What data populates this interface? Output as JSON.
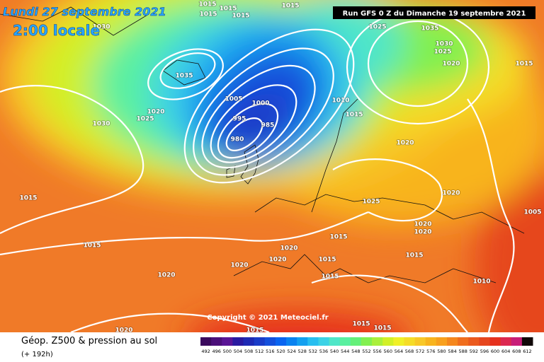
{
  "header": {
    "date": "Lundi 27 septembre 2021",
    "time": "2:00 locale",
    "run": "Run GFS 0 Z du Dimanche 19 septembre 2021"
  },
  "copyright": "Copyright © 2021 Meteociel.fr",
  "footer": {
    "title": "Géop. Z500 & pression au sol",
    "subtitle": "(+ 192h)"
  },
  "isobar_labels": [
    "1015",
    "1015",
    "1015",
    "1015",
    "1015",
    "1025",
    "1035",
    "1030",
    "1025",
    "1020",
    "1015",
    "1030",
    "1035",
    "1020",
    "1025",
    "1030",
    "1005",
    "1000",
    "995",
    "985",
    "980",
    "1010",
    "1015",
    "1020",
    "1015",
    "1020",
    "1025",
    "1020",
    "1020",
    "1005",
    "1015",
    "1015",
    "1020",
    "1020",
    "1020",
    "1015",
    "1015",
    "1015",
    "1020",
    "1010",
    "1015",
    "1015",
    "1015",
    "1020"
  ],
  "scale": {
    "labels": [
      492,
      496,
      500,
      504,
      508,
      512,
      516,
      520,
      524,
      528,
      532,
      536,
      540,
      544,
      548,
      552,
      556,
      560,
      564,
      568,
      572,
      576,
      580,
      584,
      588,
      592,
      596,
      600,
      604,
      608,
      612
    ],
    "colors": [
      "#3b0a5e",
      "#4b0f7a",
      "#5a1596",
      "#2a1aa0",
      "#1e2ab4",
      "#1a3cc8",
      "#1450dc",
      "#0a64f0",
      "#0a82f0",
      "#14a0f0",
      "#28bef0",
      "#3cd2e6",
      "#50e6c8",
      "#5af0a0",
      "#64f07a",
      "#82f050",
      "#aaf03c",
      "#d2f028",
      "#f0f028",
      "#f5dc28",
      "#f8c828",
      "#f8b41e",
      "#f8a01e",
      "#f5871e",
      "#f06e1e",
      "#eb5a1e",
      "#e6461e",
      "#e6321e",
      "#dc2850",
      "#c81e78",
      "#100808"
    ]
  }
}
